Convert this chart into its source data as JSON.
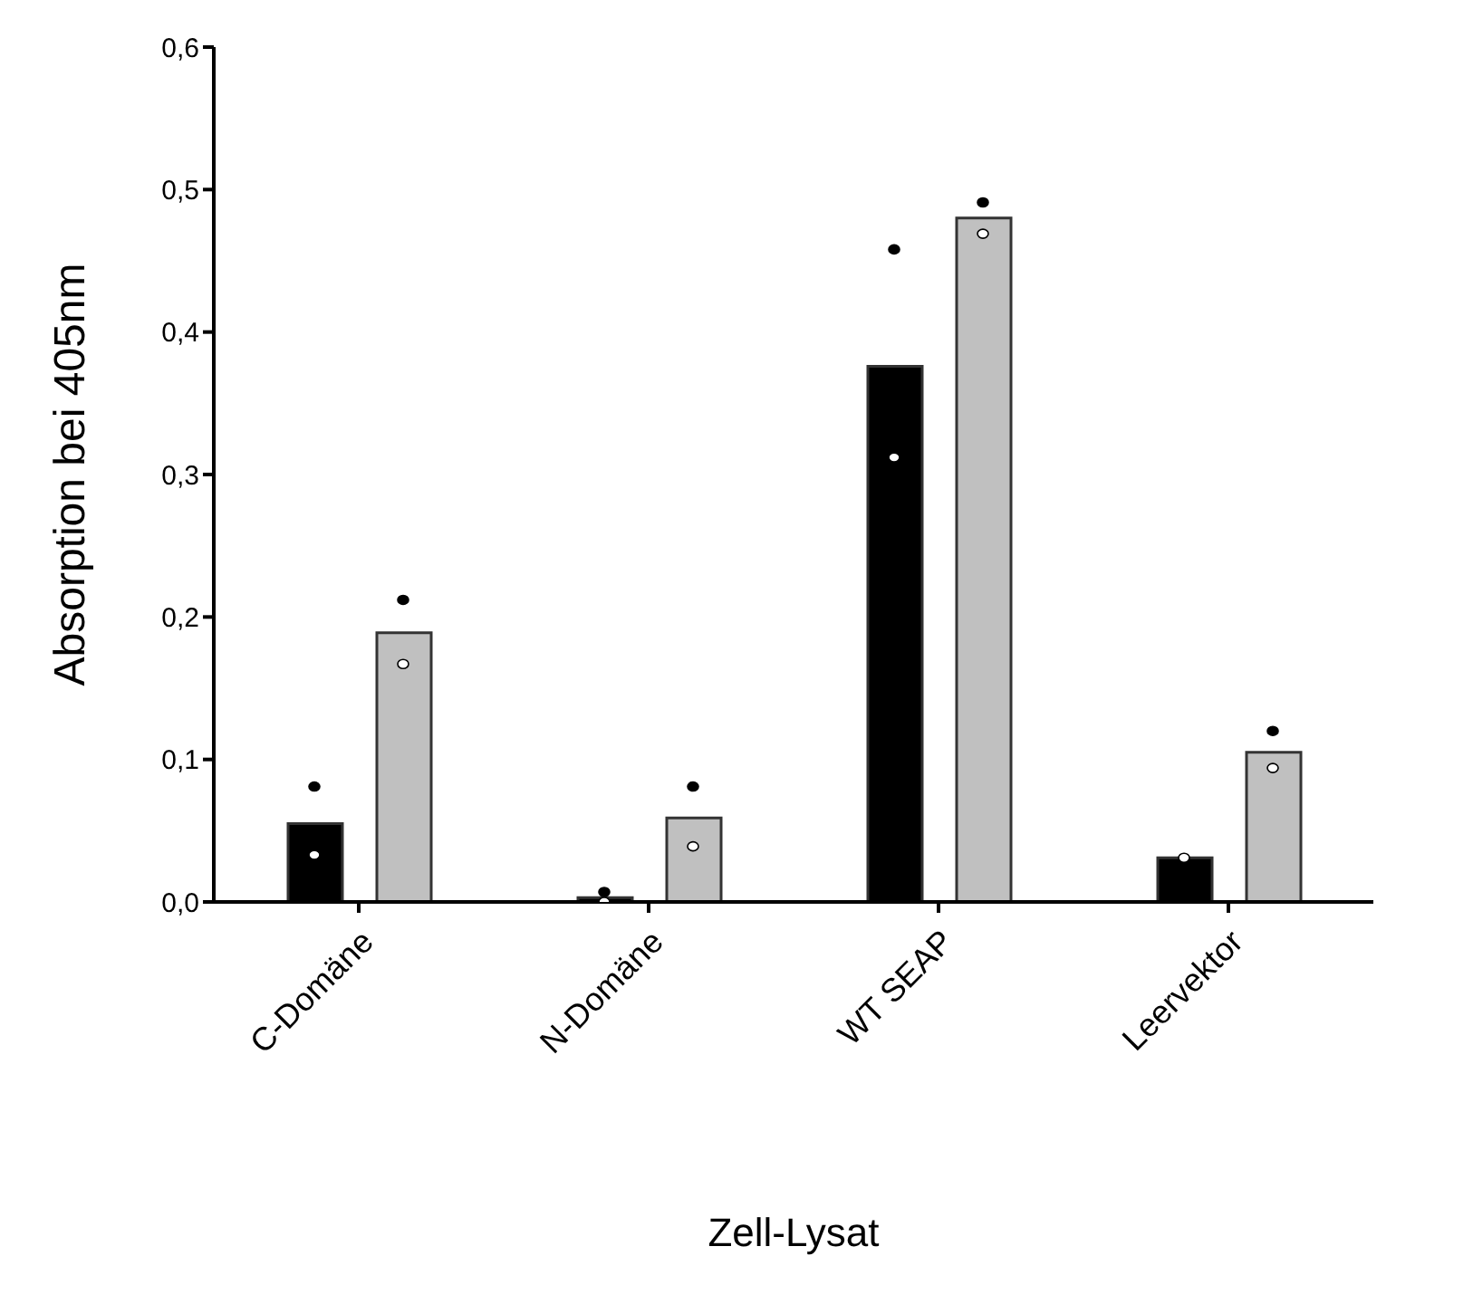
{
  "chart_data": {
    "type": "bar",
    "xlabel": "Zell-Lysat",
    "ylabel": "Absorption bei 405nm",
    "categories": [
      "C-Domäne",
      "N-Domäne",
      "WT SEAP",
      "Leervektor"
    ],
    "series": [
      {
        "color": "#000000",
        "values": [
          0.055,
          0.003,
          0.376,
          0.031
        ]
      },
      {
        "color": "#c0c0c0",
        "values": [
          0.189,
          0.059,
          0.48,
          0.105
        ]
      },
      {
        "type": "scatter",
        "color": "#000000",
        "x": [
          "C-Domäne",
          "N-Domäne",
          "WT SEAP",
          "Leervektor"
        ],
        "values": [
          0.081,
          0.007,
          0.458,
          null
        ]
      },
      {
        "type": "scatter",
        "color": "#000000",
        "x": [
          "C-Domäne",
          "N-Domäne",
          "WT SEAP",
          "Leervektor"
        ],
        "values": [
          0.212,
          0.081,
          0.491,
          0.12
        ]
      },
      {
        "type": "scatter",
        "color": "#ffffff",
        "x": [
          "C-Domäne",
          "N-Domäne",
          "WT SEAP",
          "Leervektor"
        ],
        "values": [
          0.033,
          0.0,
          0.312,
          0.031
        ]
      },
      {
        "type": "scatter",
        "color": "#ffffff",
        "x": [
          "C-Domäne",
          "N-Domäne",
          "WT SEAP",
          "Leervektor"
        ],
        "values": [
          0.167,
          0.039,
          0.469,
          0.094
        ]
      }
    ],
    "ylim": [
      0,
      0.6
    ],
    "yticks": [
      {
        "value": 0,
        "label": "0,0"
      },
      {
        "value": 0.1,
        "label": "0,1"
      },
      {
        "value": 0.2,
        "label": "0,2"
      },
      {
        "value": 0.3,
        "label": "0,3"
      },
      {
        "value": 0.4,
        "label": "0,4"
      },
      {
        "value": 0.5,
        "label": "0,5"
      },
      {
        "value": 0.6,
        "label": "0,6"
      }
    ],
    "grid": false,
    "legend": false,
    "marker": "circle"
  }
}
